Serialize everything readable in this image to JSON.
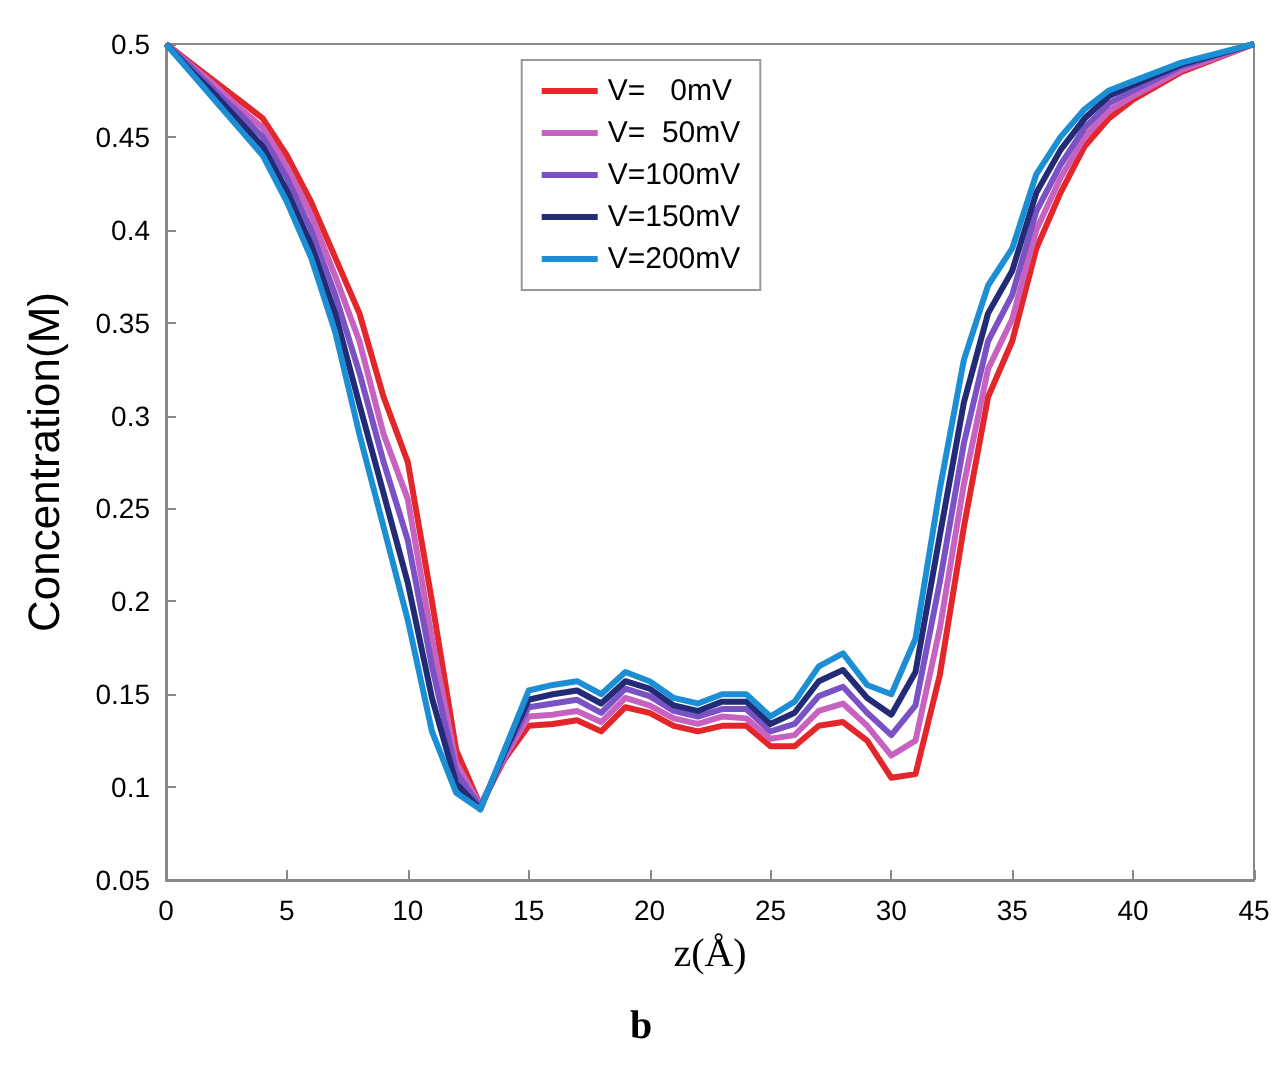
{
  "chart_data": {
    "type": "line",
    "xlabel": "z(Å)",
    "ylabel": "Concentration(M)",
    "annotations": [
      "b"
    ],
    "x": [
      0,
      1,
      2,
      3,
      4,
      5,
      6,
      7,
      8,
      9,
      10,
      11,
      12,
      13,
      14,
      15,
      16,
      17,
      18,
      19,
      20,
      21,
      22,
      23,
      24,
      25,
      26,
      27,
      28,
      29,
      30,
      31,
      32,
      33,
      34,
      35,
      36,
      37,
      38,
      39,
      40,
      42,
      45
    ],
    "series": [
      {
        "name": "V=   0mV",
        "color": "#e3262a",
        "values": [
          0.5,
          0.49,
          0.48,
          0.47,
          0.46,
          0.44,
          0.415,
          0.385,
          0.355,
          0.31,
          0.275,
          0.2,
          0.12,
          0.09,
          0.115,
          0.133,
          0.134,
          0.136,
          0.13,
          0.143,
          0.14,
          0.133,
          0.13,
          0.133,
          0.133,
          0.122,
          0.122,
          0.133,
          0.135,
          0.125,
          0.105,
          0.107,
          0.16,
          0.24,
          0.31,
          0.34,
          0.39,
          0.42,
          0.445,
          0.46,
          0.47,
          0.485,
          0.5
        ]
      },
      {
        "name": "V=  50mV",
        "color": "#c862c0",
        "values": [
          0.5,
          0.489,
          0.478,
          0.466,
          0.455,
          0.434,
          0.408,
          0.375,
          0.34,
          0.29,
          0.255,
          0.18,
          0.113,
          0.09,
          0.116,
          0.138,
          0.139,
          0.141,
          0.135,
          0.148,
          0.144,
          0.137,
          0.134,
          0.138,
          0.137,
          0.126,
          0.128,
          0.141,
          0.145,
          0.133,
          0.117,
          0.125,
          0.185,
          0.263,
          0.325,
          0.352,
          0.4,
          0.428,
          0.45,
          0.464,
          0.472,
          0.486,
          0.5
        ]
      },
      {
        "name": "V=100mV",
        "color": "#7a52c4",
        "values": [
          0.5,
          0.488,
          0.475,
          0.463,
          0.45,
          0.428,
          0.4,
          0.365,
          0.323,
          0.275,
          0.233,
          0.165,
          0.108,
          0.089,
          0.118,
          0.143,
          0.145,
          0.147,
          0.14,
          0.153,
          0.149,
          0.141,
          0.138,
          0.142,
          0.142,
          0.13,
          0.134,
          0.149,
          0.154,
          0.14,
          0.128,
          0.144,
          0.21,
          0.285,
          0.34,
          0.365,
          0.41,
          0.435,
          0.455,
          0.468,
          0.475,
          0.488,
          0.5
        ]
      },
      {
        "name": "V=150mV",
        "color": "#232a76",
        "values": [
          0.5,
          0.486,
          0.473,
          0.459,
          0.445,
          0.421,
          0.392,
          0.355,
          0.306,
          0.258,
          0.21,
          0.148,
          0.102,
          0.088,
          0.119,
          0.147,
          0.15,
          0.152,
          0.145,
          0.157,
          0.153,
          0.144,
          0.141,
          0.146,
          0.146,
          0.134,
          0.14,
          0.157,
          0.163,
          0.148,
          0.139,
          0.162,
          0.235,
          0.307,
          0.355,
          0.378,
          0.42,
          0.443,
          0.46,
          0.472,
          0.478,
          0.489,
          0.5
        ]
      },
      {
        "name": "V=200mV",
        "color": "#1c8fd4",
        "values": [
          0.5,
          0.485,
          0.47,
          0.455,
          0.44,
          0.415,
          0.385,
          0.345,
          0.29,
          0.24,
          0.19,
          0.13,
          0.097,
          0.088,
          0.12,
          0.152,
          0.155,
          0.157,
          0.15,
          0.162,
          0.157,
          0.148,
          0.145,
          0.15,
          0.15,
          0.138,
          0.146,
          0.165,
          0.172,
          0.155,
          0.15,
          0.18,
          0.26,
          0.33,
          0.37,
          0.39,
          0.43,
          0.45,
          0.465,
          0.475,
          0.48,
          0.49,
          0.5
        ]
      }
    ],
    "xlim": [
      0,
      45
    ],
    "xticks": [
      0,
      5,
      10,
      15,
      20,
      25,
      30,
      35,
      40,
      45
    ],
    "ylim": [
      0.05,
      0.5
    ],
    "yticks": [
      0.05,
      0.1,
      0.15,
      0.2,
      0.25,
      0.3,
      0.35,
      0.4,
      0.45,
      0.5
    ],
    "grid": false,
    "legend": "top",
    "marker": "none",
    "line_style": "solid"
  }
}
